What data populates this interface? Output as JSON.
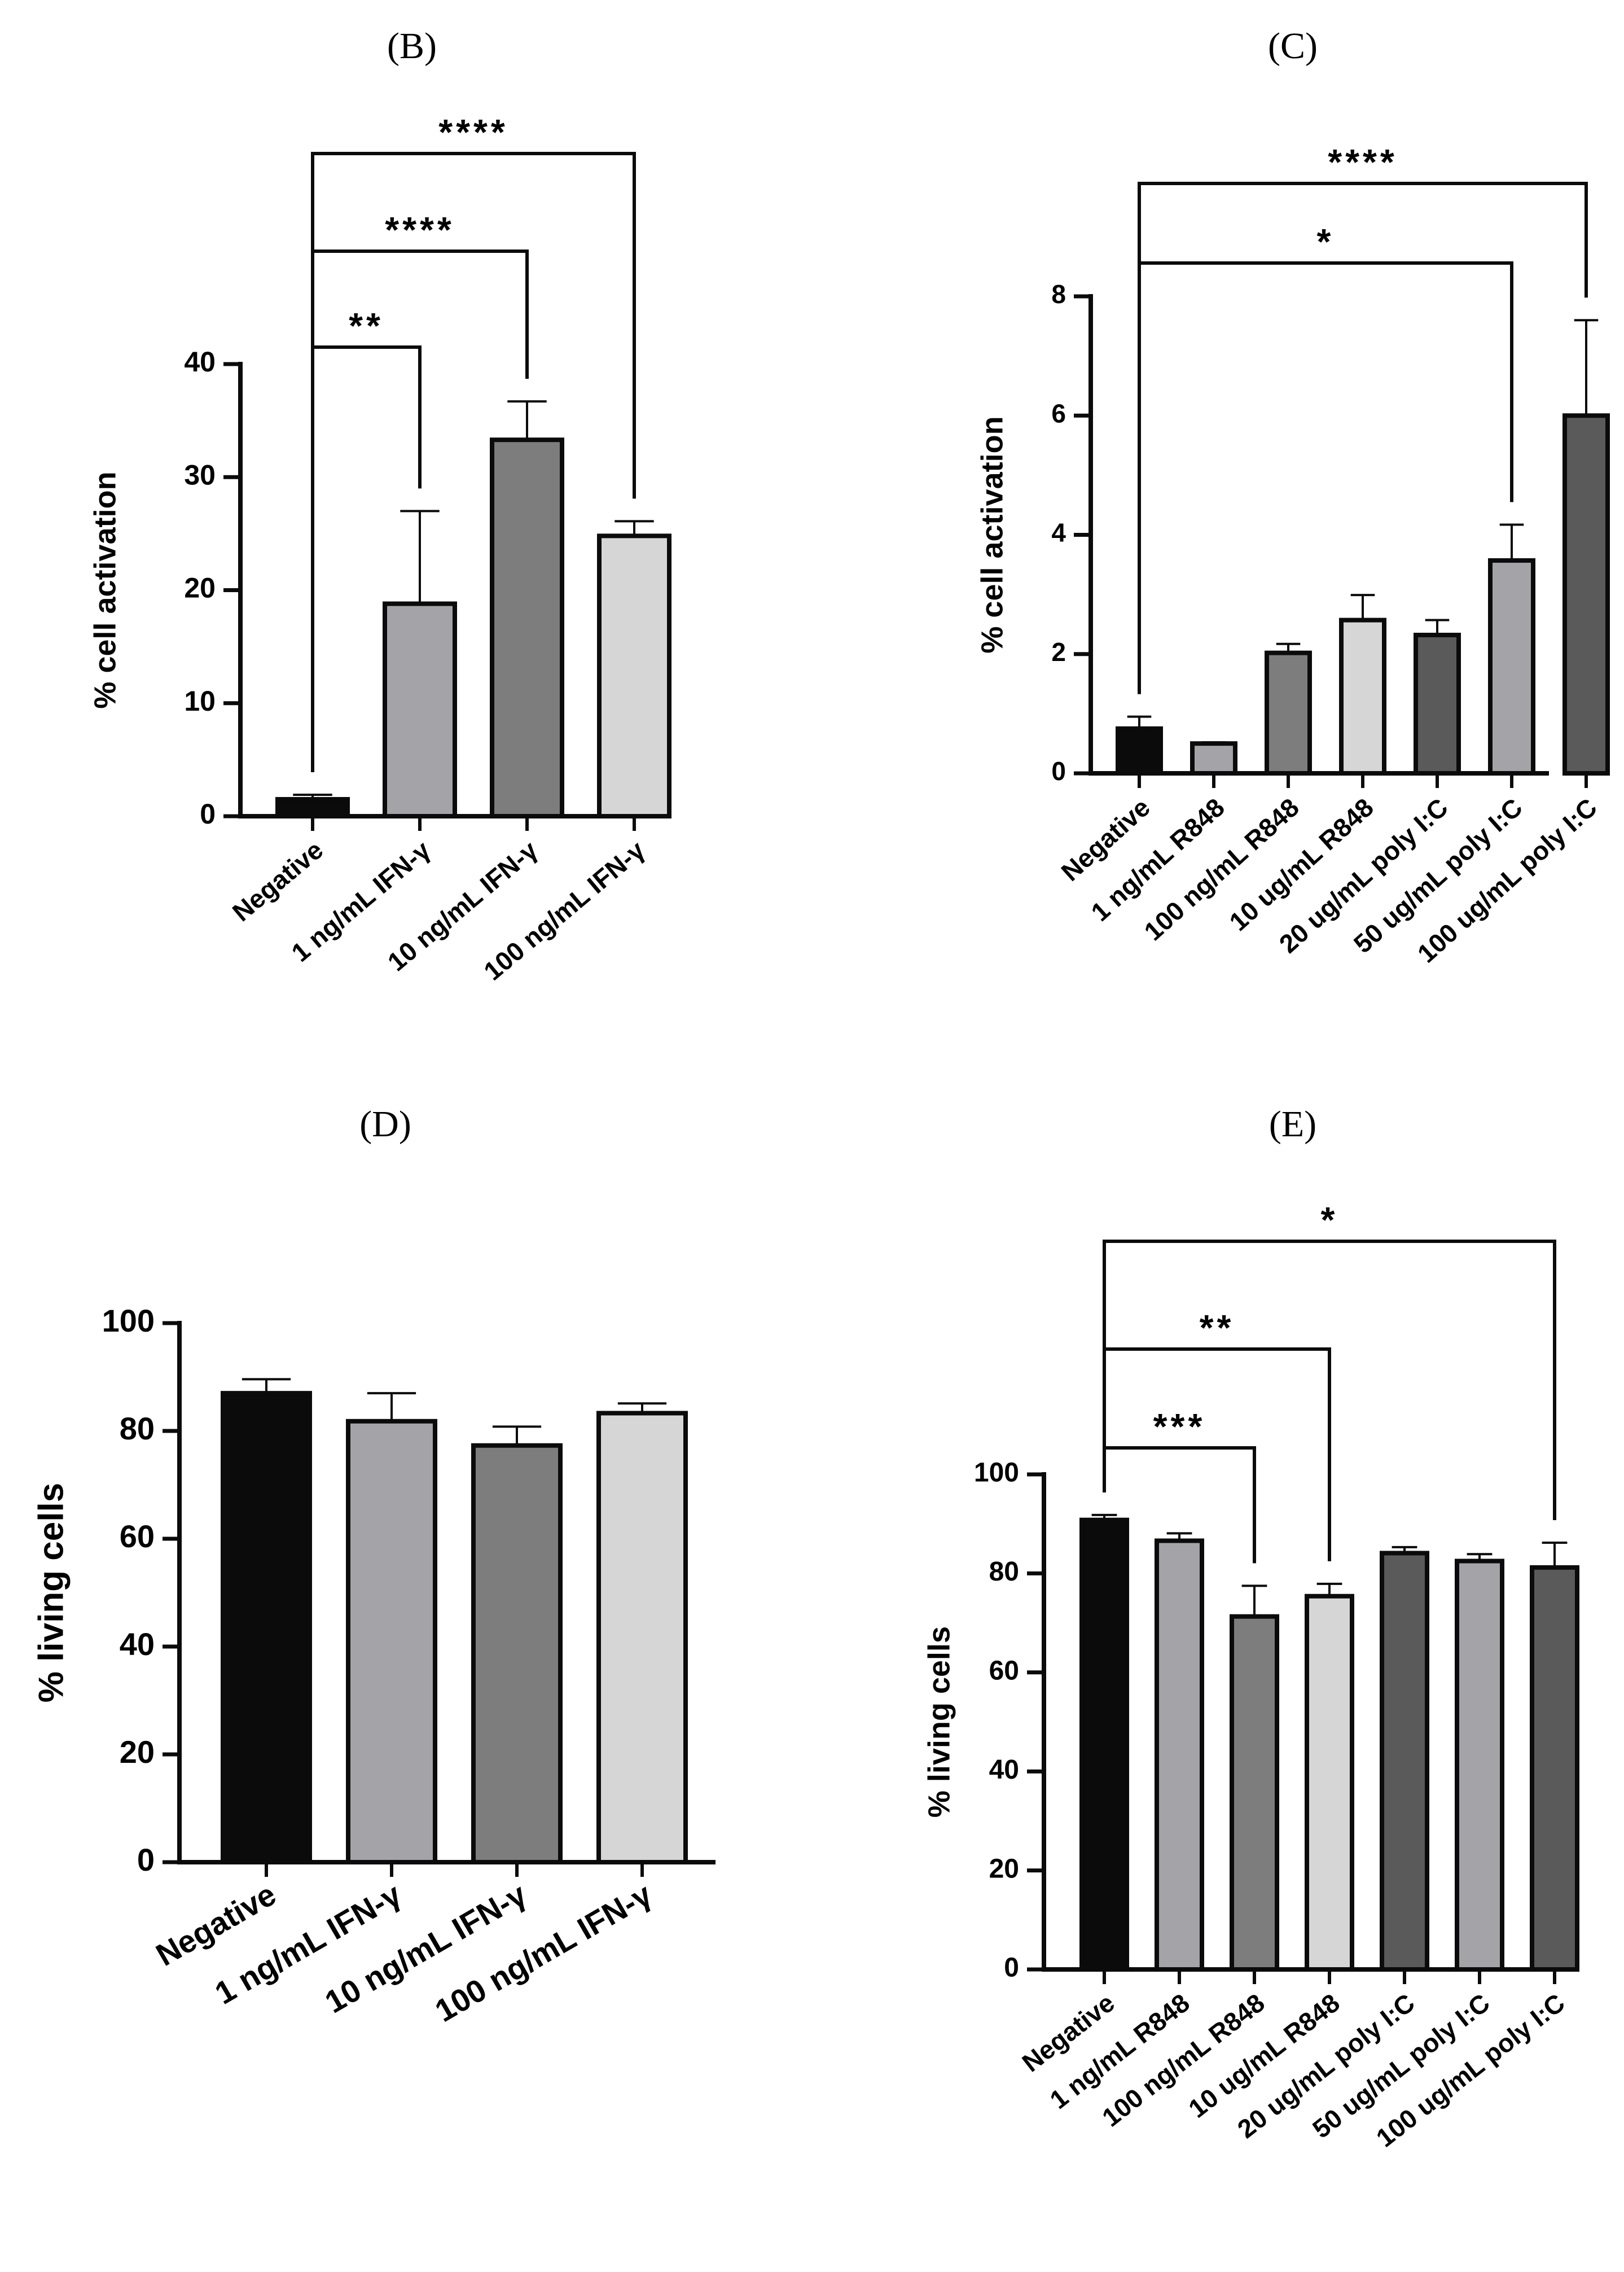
{
  "chart_data": [
    {
      "id": "B",
      "panel_label": "(B)",
      "type": "bar",
      "title": "",
      "xlabel": "",
      "ylabel": "% cell activation",
      "ylim": [
        0,
        40
      ],
      "yticks": [
        0,
        10,
        20,
        30,
        40
      ],
      "grid": false,
      "categories": [
        "Negative",
        "1 ng/mL IFN-γ",
        "10 ng/mL IFN-γ",
        "100 ng/mL IFN-γ"
      ],
      "values": [
        1.5,
        18.8,
        33.3,
        24.8
      ],
      "errors": [
        0.4,
        8.2,
        3.4,
        1.3
      ],
      "colors": [
        "#0b0b0b",
        "#a4a4a8",
        "#7d7d7d",
        "#d6d6d6"
      ],
      "significance": [
        {
          "from": 0,
          "to": 1,
          "label": "**",
          "level": 1
        },
        {
          "from": 0,
          "to": 2,
          "label": "****",
          "level": 2
        },
        {
          "from": 0,
          "to": 3,
          "label": "****",
          "level": 3
        }
      ]
    },
    {
      "id": "C",
      "panel_label": "(C)",
      "type": "bar",
      "title": "",
      "xlabel": "",
      "ylabel": "% cell activation",
      "ylim": [
        0,
        8
      ],
      "yticks": [
        0,
        2,
        4,
        6,
        8
      ],
      "grid": false,
      "categories": [
        "Negative",
        "1 ng/mL R848",
        "100 ng/mL R848",
        "10 ug/mL R848",
        "20 ug/mL poly I:C",
        "50 ug/mL poly I:C",
        "100 ug/mL poly I:C"
      ],
      "values": [
        0.75,
        0.5,
        2.02,
        2.57,
        2.32,
        3.57,
        6.0
      ],
      "errors": [
        0.2,
        0.02,
        0.15,
        0.42,
        0.25,
        0.6,
        1.6
      ],
      "colors": [
        "#0b0b0b",
        "#a4a4a8",
        "#7d7d7d",
        "#d6d6d6",
        "#5a5a5a",
        "#a4a4a8",
        "#5a5a5a"
      ],
      "significance": [
        {
          "from": 0,
          "to": 5,
          "label": "*",
          "level": 1
        },
        {
          "from": 0,
          "to": 6,
          "label": "****",
          "level": 2
        }
      ]
    },
    {
      "id": "D",
      "panel_label": "(D)",
      "type": "bar",
      "title": "",
      "xlabel": "",
      "ylabel": "% living cells",
      "ylim": [
        0,
        100
      ],
      "yticks": [
        0,
        20,
        40,
        60,
        80,
        100
      ],
      "grid": false,
      "categories": [
        "Negative",
        "1 ng/mL IFN-γ",
        "10 ng/mL IFN-γ",
        "100 ng/mL IFN-γ"
      ],
      "values": [
        87.0,
        81.8,
        77.3,
        83.3
      ],
      "errors": [
        2.6,
        5.2,
        3.5,
        1.8
      ],
      "colors": [
        "#0b0b0b",
        "#a4a4a8",
        "#7d7d7d",
        "#d6d6d6"
      ],
      "significance": []
    },
    {
      "id": "E",
      "panel_label": "(E)",
      "type": "bar",
      "title": "",
      "xlabel": "",
      "ylabel": "% living cells",
      "ylim": [
        0,
        100
      ],
      "yticks": [
        0,
        20,
        40,
        60,
        80,
        100
      ],
      "grid": false,
      "categories": [
        "Negative",
        "1 ng/mL R848",
        "100 ng/mL R848",
        "10 ug/mL R848",
        "20 ug/mL poly I:C",
        "50 ug/mL poly I:C",
        "100 ug/mL poly I:C"
      ],
      "values": [
        90.8,
        86.6,
        71.3,
        75.4,
        84.1,
        82.5,
        81.2
      ],
      "errors": [
        1.0,
        1.5,
        6.2,
        2.5,
        1.2,
        1.4,
        5.0
      ],
      "colors": [
        "#0b0b0b",
        "#a4a4a8",
        "#7d7d7d",
        "#d6d6d6",
        "#5a5a5a",
        "#a4a4a8",
        "#5a5a5a"
      ],
      "significance": [
        {
          "from": 0,
          "to": 2,
          "label": "***",
          "level": 1
        },
        {
          "from": 0,
          "to": 3,
          "label": "**",
          "level": 2
        },
        {
          "from": 0,
          "to": 6,
          "label": "*",
          "level": 3
        }
      ]
    }
  ]
}
